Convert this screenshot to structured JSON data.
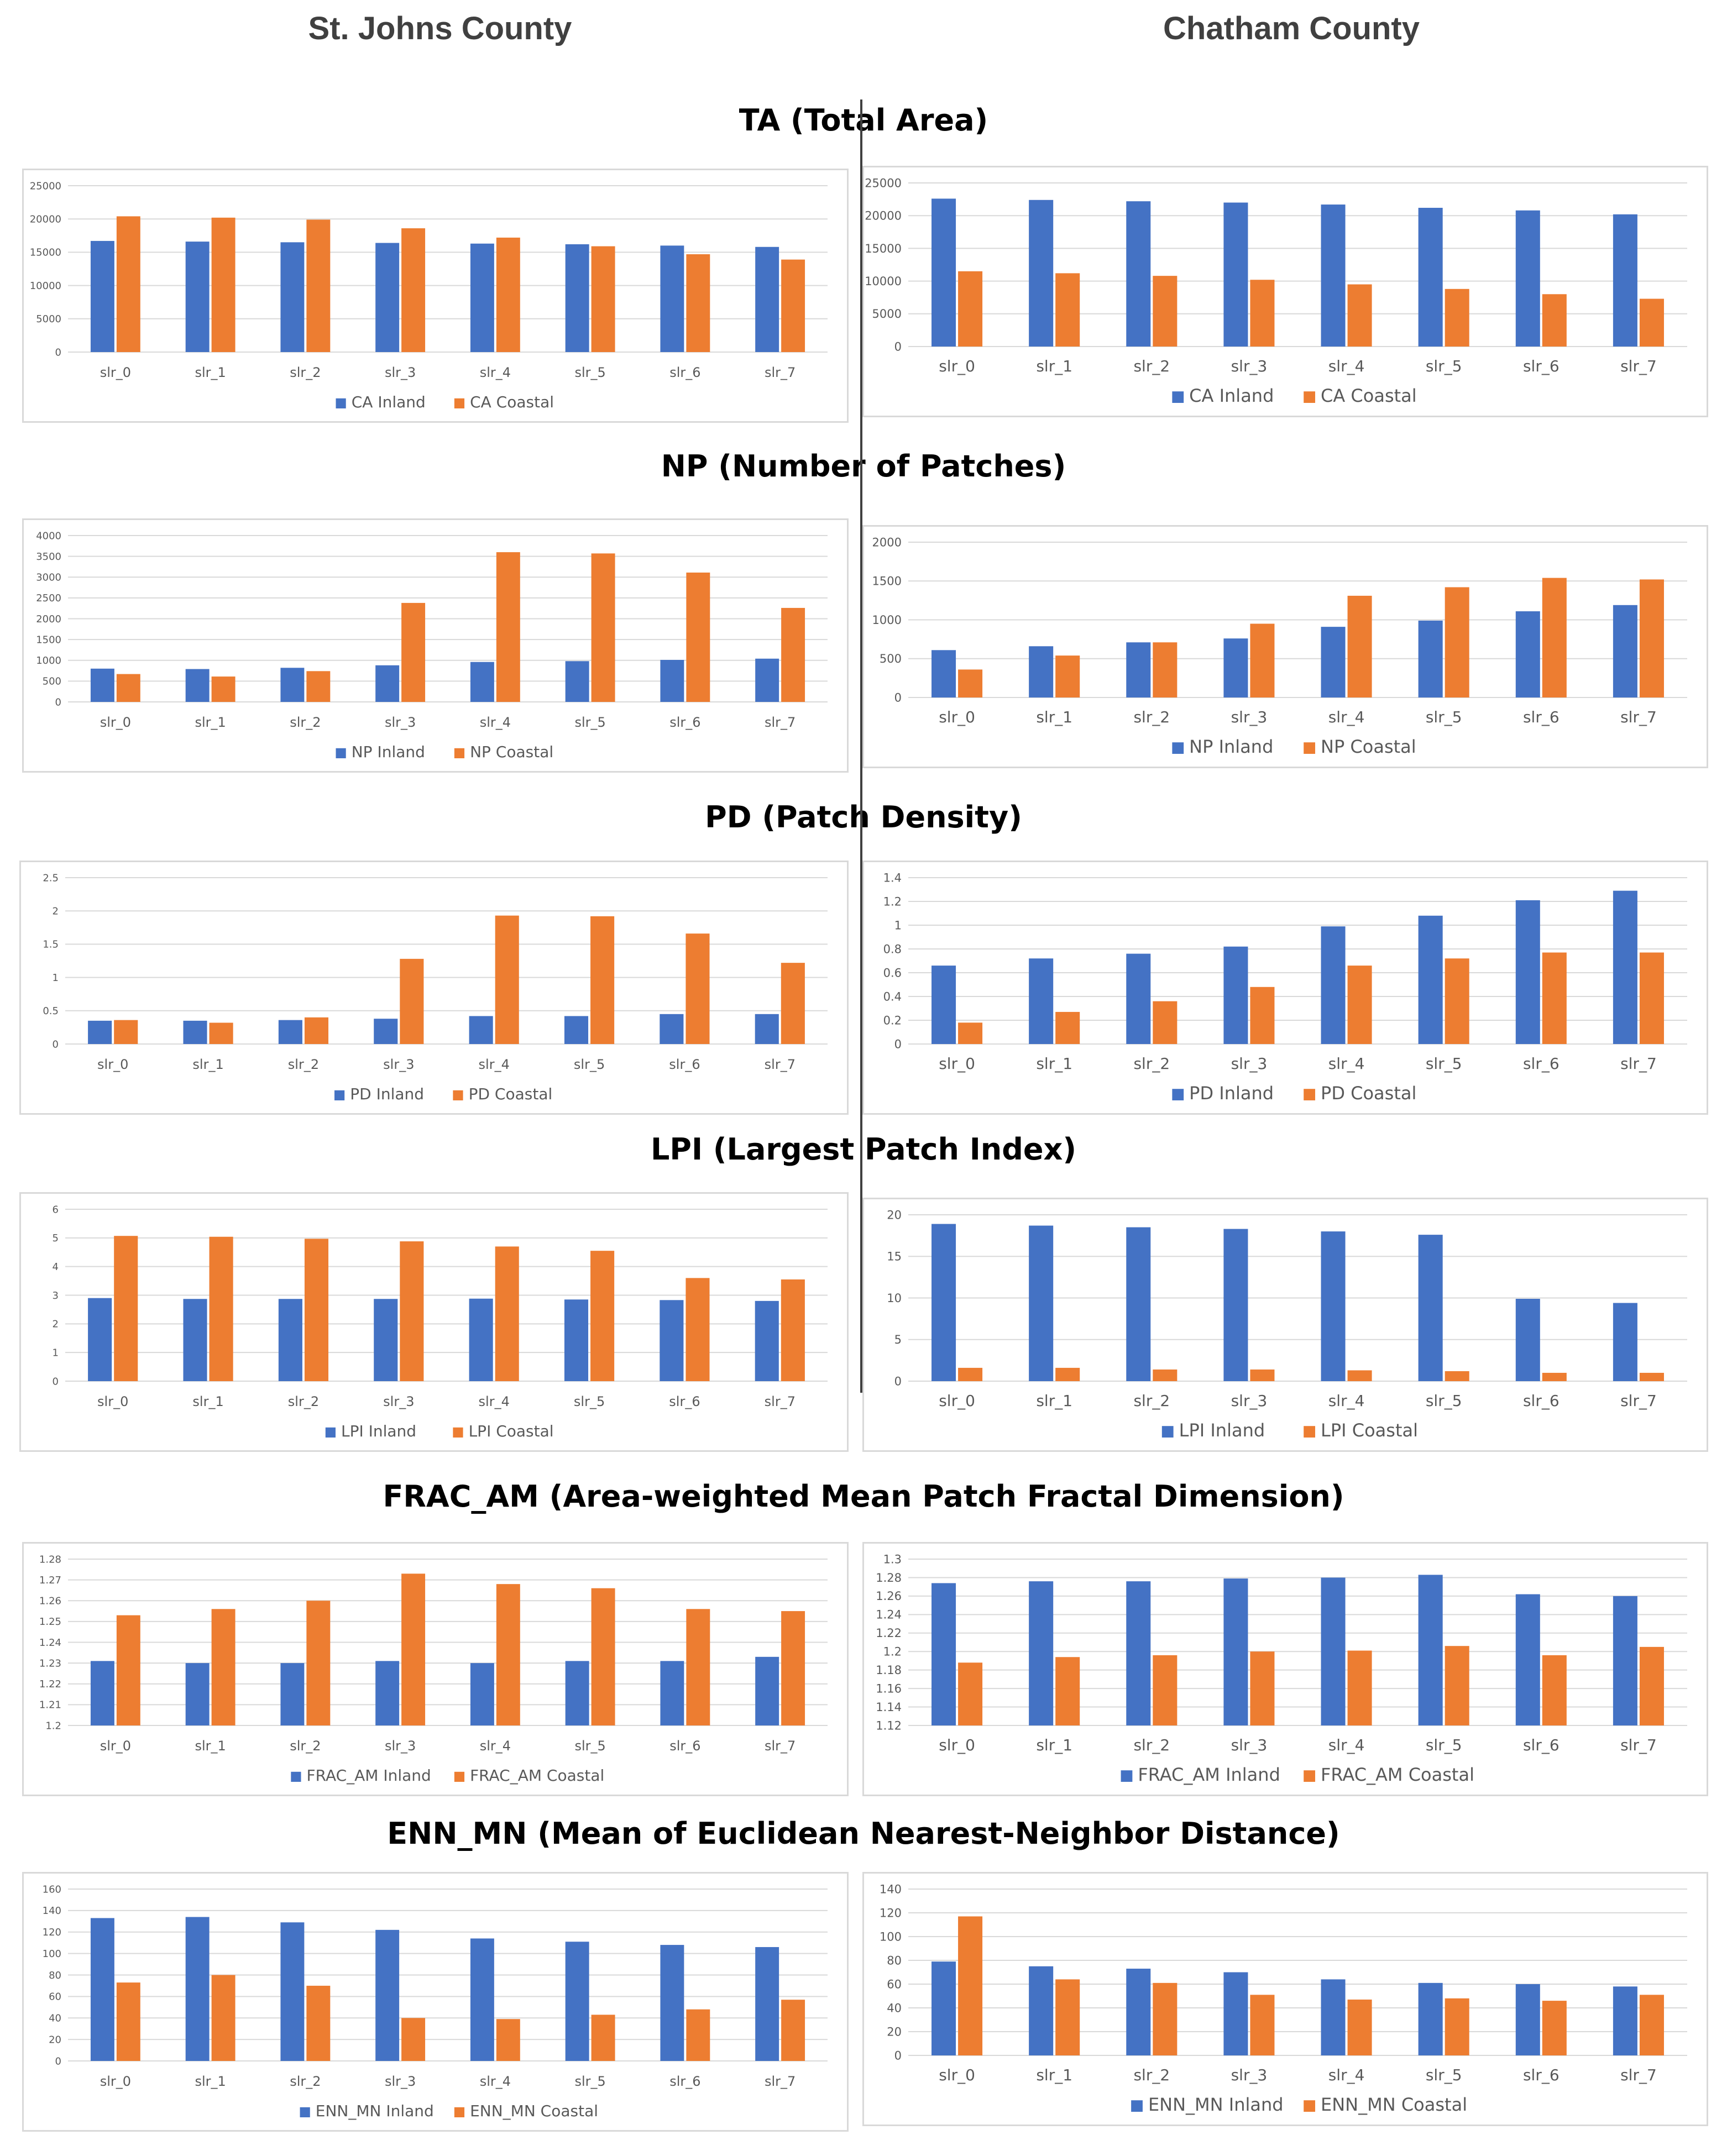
{
  "page": {
    "left_county": "St. Johns County",
    "right_county": "Chatham County",
    "sections": [
      "TA (Total Area)",
      "NP (Number of Patches)",
      "PD (Patch Density)",
      "LPI (Largest Patch Index)",
      "FRAC_AM (Area-weighted Mean Patch Fractal Dimension)",
      "ENN_MN (Mean of Euclidean Nearest-Neighbor Distance)"
    ]
  },
  "colors": {
    "inland": "#4472C4",
    "coastal": "#ED7D31",
    "grid": "#d9d9d9",
    "text": "#595959"
  },
  "chart_data": [
    {
      "id": "ta-stjohns",
      "type": "bar",
      "categories": [
        "slr_0",
        "slr_1",
        "slr_2",
        "slr_3",
        "slr_4",
        "slr_5",
        "slr_6",
        "slr_7"
      ],
      "series": [
        {
          "name": "CA Inland",
          "values": [
            16700,
            16600,
            16500,
            16400,
            16300,
            16200,
            16000,
            15800
          ]
        },
        {
          "name": "CA Coastal",
          "values": [
            20400,
            20200,
            19900,
            18600,
            17200,
            15900,
            14700,
            13900
          ]
        }
      ],
      "yticks": [
        "0",
        "5000",
        "10000",
        "15000",
        "20000",
        "25000"
      ],
      "ylim": [
        0,
        25000
      ],
      "grid": true,
      "legend": "bottom"
    },
    {
      "id": "ta-chatham",
      "type": "bar",
      "categories": [
        "slr_0",
        "slr_1",
        "slr_2",
        "slr_3",
        "slr_4",
        "slr_5",
        "slr_6",
        "slr_7"
      ],
      "series": [
        {
          "name": "CA Inland",
          "values": [
            22600,
            22400,
            22200,
            22000,
            21700,
            21200,
            20800,
            20200
          ]
        },
        {
          "name": "CA Coastal",
          "values": [
            11500,
            11200,
            10800,
            10200,
            9500,
            8800,
            8000,
            7300
          ]
        }
      ],
      "yticks": [
        "0",
        "5000",
        "10000",
        "15000",
        "20000",
        "25000"
      ],
      "ylim": [
        0,
        25000
      ],
      "grid": true,
      "legend": "bottom"
    },
    {
      "id": "np-stjohns",
      "type": "bar",
      "categories": [
        "slr_0",
        "slr_1",
        "slr_2",
        "slr_3",
        "slr_4",
        "slr_5",
        "slr_6",
        "slr_7"
      ],
      "series": [
        {
          "name": "NP Inland",
          "values": [
            800,
            790,
            820,
            880,
            960,
            980,
            1010,
            1040
          ]
        },
        {
          "name": "NP Coastal",
          "values": [
            670,
            610,
            740,
            2380,
            3600,
            3570,
            3110,
            2260
          ]
        }
      ],
      "yticks": [
        "0",
        "500",
        "1000",
        "1500",
        "2000",
        "2500",
        "3000",
        "3500",
        "4000"
      ],
      "ylim": [
        0,
        4000
      ],
      "grid": true,
      "legend": "bottom"
    },
    {
      "id": "np-chatham",
      "type": "bar",
      "categories": [
        "slr_0",
        "slr_1",
        "slr_2",
        "slr_3",
        "slr_4",
        "slr_5",
        "slr_6",
        "slr_7"
      ],
      "series": [
        {
          "name": "NP Inland",
          "values": [
            610,
            660,
            710,
            760,
            910,
            990,
            1110,
            1190
          ]
        },
        {
          "name": "NP Coastal",
          "values": [
            360,
            540,
            710,
            950,
            1310,
            1420,
            1540,
            1520
          ]
        }
      ],
      "yticks": [
        "0",
        "500",
        "1000",
        "1500",
        "2000"
      ],
      "ylim": [
        0,
        2000
      ],
      "grid": true,
      "legend": "bottom"
    },
    {
      "id": "pd-stjohns",
      "type": "bar",
      "categories": [
        "slr_0",
        "slr_1",
        "slr_2",
        "slr_3",
        "slr_4",
        "slr_5",
        "slr_6",
        "slr_7"
      ],
      "series": [
        {
          "name": "PD Inland",
          "values": [
            0.35,
            0.35,
            0.36,
            0.38,
            0.42,
            0.42,
            0.45,
            0.45
          ]
        },
        {
          "name": "PD Coastal",
          "values": [
            0.36,
            0.32,
            0.4,
            1.28,
            1.93,
            1.92,
            1.66,
            1.22
          ]
        }
      ],
      "yticks": [
        "0",
        "0.5",
        "1",
        "1.5",
        "2",
        "2.5"
      ],
      "ylim": [
        0,
        2.5
      ],
      "grid": true,
      "legend": "bottom"
    },
    {
      "id": "pd-chatham",
      "type": "bar",
      "categories": [
        "slr_0",
        "slr_1",
        "slr_2",
        "slr_3",
        "slr_4",
        "slr_5",
        "slr_6",
        "slr_7"
      ],
      "series": [
        {
          "name": "PD Inland",
          "values": [
            0.66,
            0.72,
            0.76,
            0.82,
            0.99,
            1.08,
            1.21,
            1.29
          ]
        },
        {
          "name": "PD Coastal",
          "values": [
            0.18,
            0.27,
            0.36,
            0.48,
            0.66,
            0.72,
            0.77,
            0.77
          ]
        }
      ],
      "yticks": [
        "0",
        "0.2",
        "0.4",
        "0.6",
        "0.8",
        "1",
        "1.2",
        "1.4"
      ],
      "ylim": [
        0,
        1.4
      ],
      "grid": true,
      "legend": "bottom"
    },
    {
      "id": "lpi-stjohns",
      "type": "bar",
      "categories": [
        "slr_0",
        "slr_1",
        "slr_2",
        "slr_3",
        "slr_4",
        "slr_5",
        "slr_6",
        "slr_7"
      ],
      "series": [
        {
          "name": "LPI Inland",
          "values": [
            2.9,
            2.87,
            2.87,
            2.87,
            2.88,
            2.85,
            2.83,
            2.8
          ]
        },
        {
          "name": "LPI Coastal",
          "values": [
            5.07,
            5.04,
            4.97,
            4.88,
            4.7,
            4.55,
            3.6,
            3.55
          ]
        }
      ],
      "yticks": [
        "0",
        "1",
        "2",
        "3",
        "4",
        "5",
        "6"
      ],
      "ylim": [
        0,
        6
      ],
      "grid": true,
      "legend": "bottom"
    },
    {
      "id": "lpi-chatham",
      "type": "bar",
      "categories": [
        "slr_0",
        "slr_1",
        "slr_2",
        "slr_3",
        "slr_4",
        "slr_5",
        "slr_6",
        "slr_7"
      ],
      "series": [
        {
          "name": "LPI Inland",
          "values": [
            18.9,
            18.7,
            18.5,
            18.3,
            18,
            17.6,
            9.9,
            9.4
          ]
        },
        {
          "name": "LPI Coastal",
          "values": [
            1.6,
            1.6,
            1.4,
            1.4,
            1.3,
            1.2,
            1,
            1
          ]
        }
      ],
      "yticks": [
        "0",
        "5",
        "10",
        "15",
        "20"
      ],
      "ylim": [
        0,
        20
      ],
      "grid": true,
      "legend": "bottom"
    },
    {
      "id": "frac-stjohns",
      "type": "bar",
      "categories": [
        "slr_0",
        "slr_1",
        "slr_2",
        "slr_3",
        "slr_4",
        "slr_5",
        "slr_6",
        "slr_7"
      ],
      "series": [
        {
          "name": "FRAC_AM Inland",
          "values": [
            1.231,
            1.23,
            1.23,
            1.231,
            1.23,
            1.231,
            1.231,
            1.233
          ]
        },
        {
          "name": "FRAC_AM Coastal",
          "values": [
            1.253,
            1.256,
            1.26,
            1.273,
            1.268,
            1.266,
            1.256,
            1.255
          ]
        }
      ],
      "yticks": [
        "1.2",
        "1.21",
        "1.22",
        "1.23",
        "1.24",
        "1.25",
        "1.26",
        "1.27",
        "1.28"
      ],
      "ylim": [
        1.2,
        1.28
      ],
      "grid": true,
      "legend": "bottom"
    },
    {
      "id": "frac-chatham",
      "type": "bar",
      "categories": [
        "slr_0",
        "slr_1",
        "slr_2",
        "slr_3",
        "slr_4",
        "slr_5",
        "slr_6",
        "slr_7"
      ],
      "series": [
        {
          "name": "FRAC_AM Inland",
          "values": [
            1.274,
            1.276,
            1.276,
            1.279,
            1.28,
            1.283,
            1.262,
            1.26
          ]
        },
        {
          "name": "FRAC_AM Coastal",
          "values": [
            1.188,
            1.194,
            1.196,
            1.2,
            1.201,
            1.206,
            1.196,
            1.205
          ]
        }
      ],
      "yticks": [
        "1.12",
        "1.14",
        "1.16",
        "1.18",
        "1.2",
        "1.22",
        "1.24",
        "1.26",
        "1.28",
        "1.3"
      ],
      "ylim": [
        1.12,
        1.3
      ],
      "grid": true,
      "legend": "bottom"
    },
    {
      "id": "enn-stjohns",
      "type": "bar",
      "categories": [
        "slr_0",
        "slr_1",
        "slr_2",
        "slr_3",
        "slr_4",
        "slr_5",
        "slr_6",
        "slr_7"
      ],
      "series": [
        {
          "name": "ENN_MN Inland",
          "values": [
            133,
            134,
            129,
            122,
            114,
            111,
            108,
            106
          ]
        },
        {
          "name": "ENN_MN Coastal",
          "values": [
            73,
            80,
            70,
            40,
            39,
            43,
            48,
            57
          ]
        }
      ],
      "yticks": [
        "0",
        "20",
        "40",
        "60",
        "80",
        "100",
        "120",
        "140",
        "160"
      ],
      "ylim": [
        0,
        160
      ],
      "grid": true,
      "legend": "bottom"
    },
    {
      "id": "enn-chatham",
      "type": "bar",
      "categories": [
        "slr_0",
        "slr_1",
        "slr_2",
        "slr_3",
        "slr_4",
        "slr_5",
        "slr_6",
        "slr_7"
      ],
      "series": [
        {
          "name": "ENN_MN Inland",
          "values": [
            79,
            75,
            73,
            70,
            64,
            61,
            60,
            58
          ]
        },
        {
          "name": "ENN_MN Coastal",
          "values": [
            117,
            64,
            61,
            51,
            47,
            48,
            46,
            51
          ]
        }
      ],
      "yticks": [
        "0",
        "20",
        "40",
        "60",
        "80",
        "100",
        "120",
        "140"
      ],
      "ylim": [
        0,
        140
      ],
      "grid": true,
      "legend": "bottom"
    }
  ]
}
